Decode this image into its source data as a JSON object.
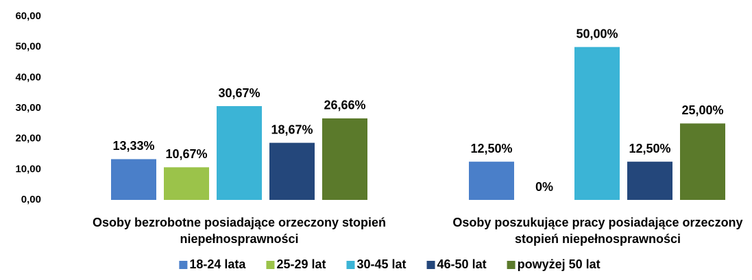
{
  "chart_data": {
    "type": "bar",
    "categories": [
      "Osoby bezrobotne posiadające orzeczony stopień niepełnosprawności",
      "Osoby poszukujące pracy posiadające orzeczony stopień niepełnosprawności"
    ],
    "series": [
      {
        "name": "18-24 lata",
        "color": "#4a7fc9",
        "values": [
          13.33,
          12.5
        ],
        "value_labels": [
          "13,33%",
          "12,50%"
        ]
      },
      {
        "name": "25-29 lat",
        "color": "#9bc34a",
        "values": [
          10.67,
          0
        ],
        "value_labels": [
          "10,67%",
          "0%"
        ]
      },
      {
        "name": "30-45 lat",
        "color": "#3bb4d6",
        "values": [
          30.67,
          50
        ],
        "value_labels": [
          "30,67%",
          "50,00%"
        ]
      },
      {
        "name": "46-50 lat",
        "color": "#24477b",
        "values": [
          18.67,
          12.5
        ],
        "value_labels": [
          "18,67%",
          "12,50%"
        ]
      },
      {
        "name": "powyżej 50 lat",
        "color": "#5b7a2b",
        "values": [
          26.66,
          25
        ],
        "value_labels": [
          "26,66%",
          "25,00%"
        ]
      }
    ],
    "ylim": [
      0,
      60
    ],
    "yticks": [
      {
        "value": 0,
        "label": "0,00"
      },
      {
        "value": 10,
        "label": "10,00"
      },
      {
        "value": 20,
        "label": "20,00"
      },
      {
        "value": 30,
        "label": "30,00"
      },
      {
        "value": 40,
        "label": "40,00"
      },
      {
        "value": 50,
        "label": "50,00"
      },
      {
        "value": 60,
        "label": "60,00"
      }
    ],
    "grid": false,
    "legend": "bottom"
  }
}
